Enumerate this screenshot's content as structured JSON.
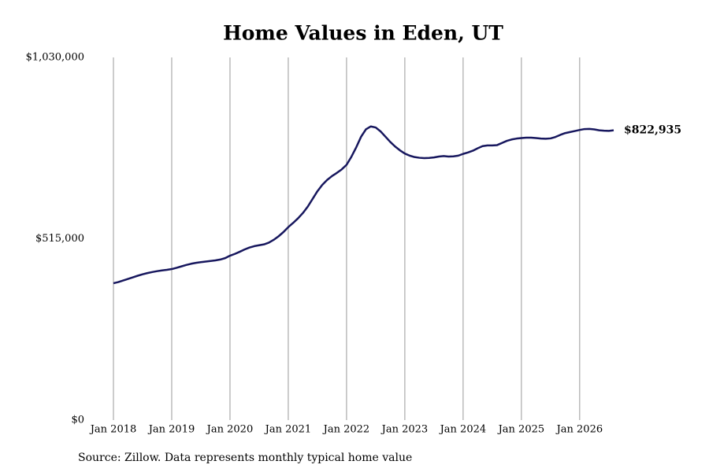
{
  "chart_data": {
    "type": "line",
    "title": "Home Values in Eden, UT",
    "source": "Source: Zillow. Data represents monthly typical home value",
    "color": "#17175e",
    "grid": true,
    "x": [
      "2018-01",
      "2018-02",
      "2018-03",
      "2018-04",
      "2018-05",
      "2018-06",
      "2018-07",
      "2018-08",
      "2018-09",
      "2018-10",
      "2018-11",
      "2018-12",
      "2019-01",
      "2019-02",
      "2019-03",
      "2019-04",
      "2019-05",
      "2019-06",
      "2019-07",
      "2019-08",
      "2019-09",
      "2019-10",
      "2019-11",
      "2019-12",
      "2020-01",
      "2020-02",
      "2020-03",
      "2020-04",
      "2020-05",
      "2020-06",
      "2020-07",
      "2020-08",
      "2020-09",
      "2020-10",
      "2020-11",
      "2020-12",
      "2021-01",
      "2021-02",
      "2021-03",
      "2021-04",
      "2021-05",
      "2021-06",
      "2021-07",
      "2021-08",
      "2021-09",
      "2021-10",
      "2021-11",
      "2021-12",
      "2022-01",
      "2022-02",
      "2022-03",
      "2022-04",
      "2022-05",
      "2022-06",
      "2022-07",
      "2022-08",
      "2022-09",
      "2022-10",
      "2022-11",
      "2022-12",
      "2023-01",
      "2023-02",
      "2023-03",
      "2023-04",
      "2023-05",
      "2023-06",
      "2023-07",
      "2023-08",
      "2023-09",
      "2023-10",
      "2023-11",
      "2023-12",
      "2024-01",
      "2024-02",
      "2024-03",
      "2024-04",
      "2024-05",
      "2024-06",
      "2024-07",
      "2024-08",
      "2024-09",
      "2024-10",
      "2024-11",
      "2024-12",
      "2025-01",
      "2025-02",
      "2025-03",
      "2025-04",
      "2025-05",
      "2025-06",
      "2025-07",
      "2025-08",
      "2025-09",
      "2025-10",
      "2025-11",
      "2025-12",
      "2026-01",
      "2026-02",
      "2026-03",
      "2026-04",
      "2026-05",
      "2026-06",
      "2026-07",
      "2026-08"
    ],
    "values": [
      388700,
      392000,
      396500,
      401000,
      405500,
      410000,
      414000,
      417500,
      420500,
      423000,
      425000,
      426800,
      428900,
      432500,
      436500,
      440500,
      444000,
      446500,
      448500,
      450200,
      451800,
      453500,
      456000,
      460000,
      466900,
      472000,
      478000,
      484500,
      490000,
      494000,
      496500,
      499000,
      504000,
      512000,
      522000,
      534000,
      548000,
      560000,
      573000,
      588000,
      606000,
      628000,
      650000,
      668000,
      682000,
      693000,
      702000,
      712000,
      725000,
      748000,
      775000,
      805000,
      826000,
      834000,
      831000,
      820000,
      805000,
      790000,
      777000,
      766000,
      757000,
      751000,
      747000,
      745000,
      744000,
      744500,
      746000,
      748500,
      750000,
      748500,
      749000,
      751000,
      756000,
      760000,
      765000,
      772000,
      778000,
      780000,
      780000,
      781000,
      787000,
      793000,
      797000,
      799500,
      801000,
      802000,
      802000,
      801000,
      799500,
      799000,
      800000,
      804000,
      810000,
      815000,
      818000,
      821000,
      824000,
      826500,
      827000,
      825500,
      823000,
      821800,
      821500,
      822935
    ],
    "value_labels": [
      null,
      null,
      null,
      null,
      null,
      null,
      null,
      null,
      null,
      null,
      null,
      null,
      null,
      null,
      null,
      null,
      null,
      null,
      null,
      null,
      null,
      null,
      null,
      null,
      null,
      null,
      null,
      null,
      null,
      null,
      null,
      null,
      null,
      null,
      null,
      null,
      null,
      null,
      null,
      null,
      null,
      null,
      null,
      null,
      null,
      null,
      null,
      null,
      null,
      null,
      null,
      null,
      null,
      null,
      null,
      null,
      null,
      null,
      null,
      null,
      null,
      null,
      null,
      null,
      null,
      null,
      null,
      null,
      null,
      null,
      null,
      null,
      null,
      null,
      null,
      null,
      null,
      null,
      null,
      null,
      null,
      null,
      null,
      null,
      null,
      null,
      null,
      null,
      null,
      null,
      null,
      null,
      null,
      null,
      null,
      null,
      null,
      null,
      null,
      null,
      null,
      null,
      null,
      "$822,935"
    ],
    "xlim": [
      "2018-01",
      "2026-08"
    ],
    "xticks": [
      {
        "value": "2018-01",
        "label": "Jan 2018"
      },
      {
        "value": "2019-01",
        "label": "Jan 2019"
      },
      {
        "value": "2020-01",
        "label": "Jan 2020"
      },
      {
        "value": "2021-01",
        "label": "Jan 2021"
      },
      {
        "value": "2022-01",
        "label": "Jan 2022"
      },
      {
        "value": "2023-01",
        "label": "Jan 2023"
      },
      {
        "value": "2024-01",
        "label": "Jan 2024"
      },
      {
        "value": "2025-01",
        "label": "Jan 2025"
      },
      {
        "value": "2026-01",
        "label": "Jan 2026"
      }
    ],
    "ylim": [
      0,
      1030000
    ],
    "yticks": [
      {
        "value": 0,
        "label": "$0"
      },
      {
        "value": 515000,
        "label": "$515,000"
      },
      {
        "value": 1030000,
        "label": "$1,030,000"
      }
    ]
  }
}
